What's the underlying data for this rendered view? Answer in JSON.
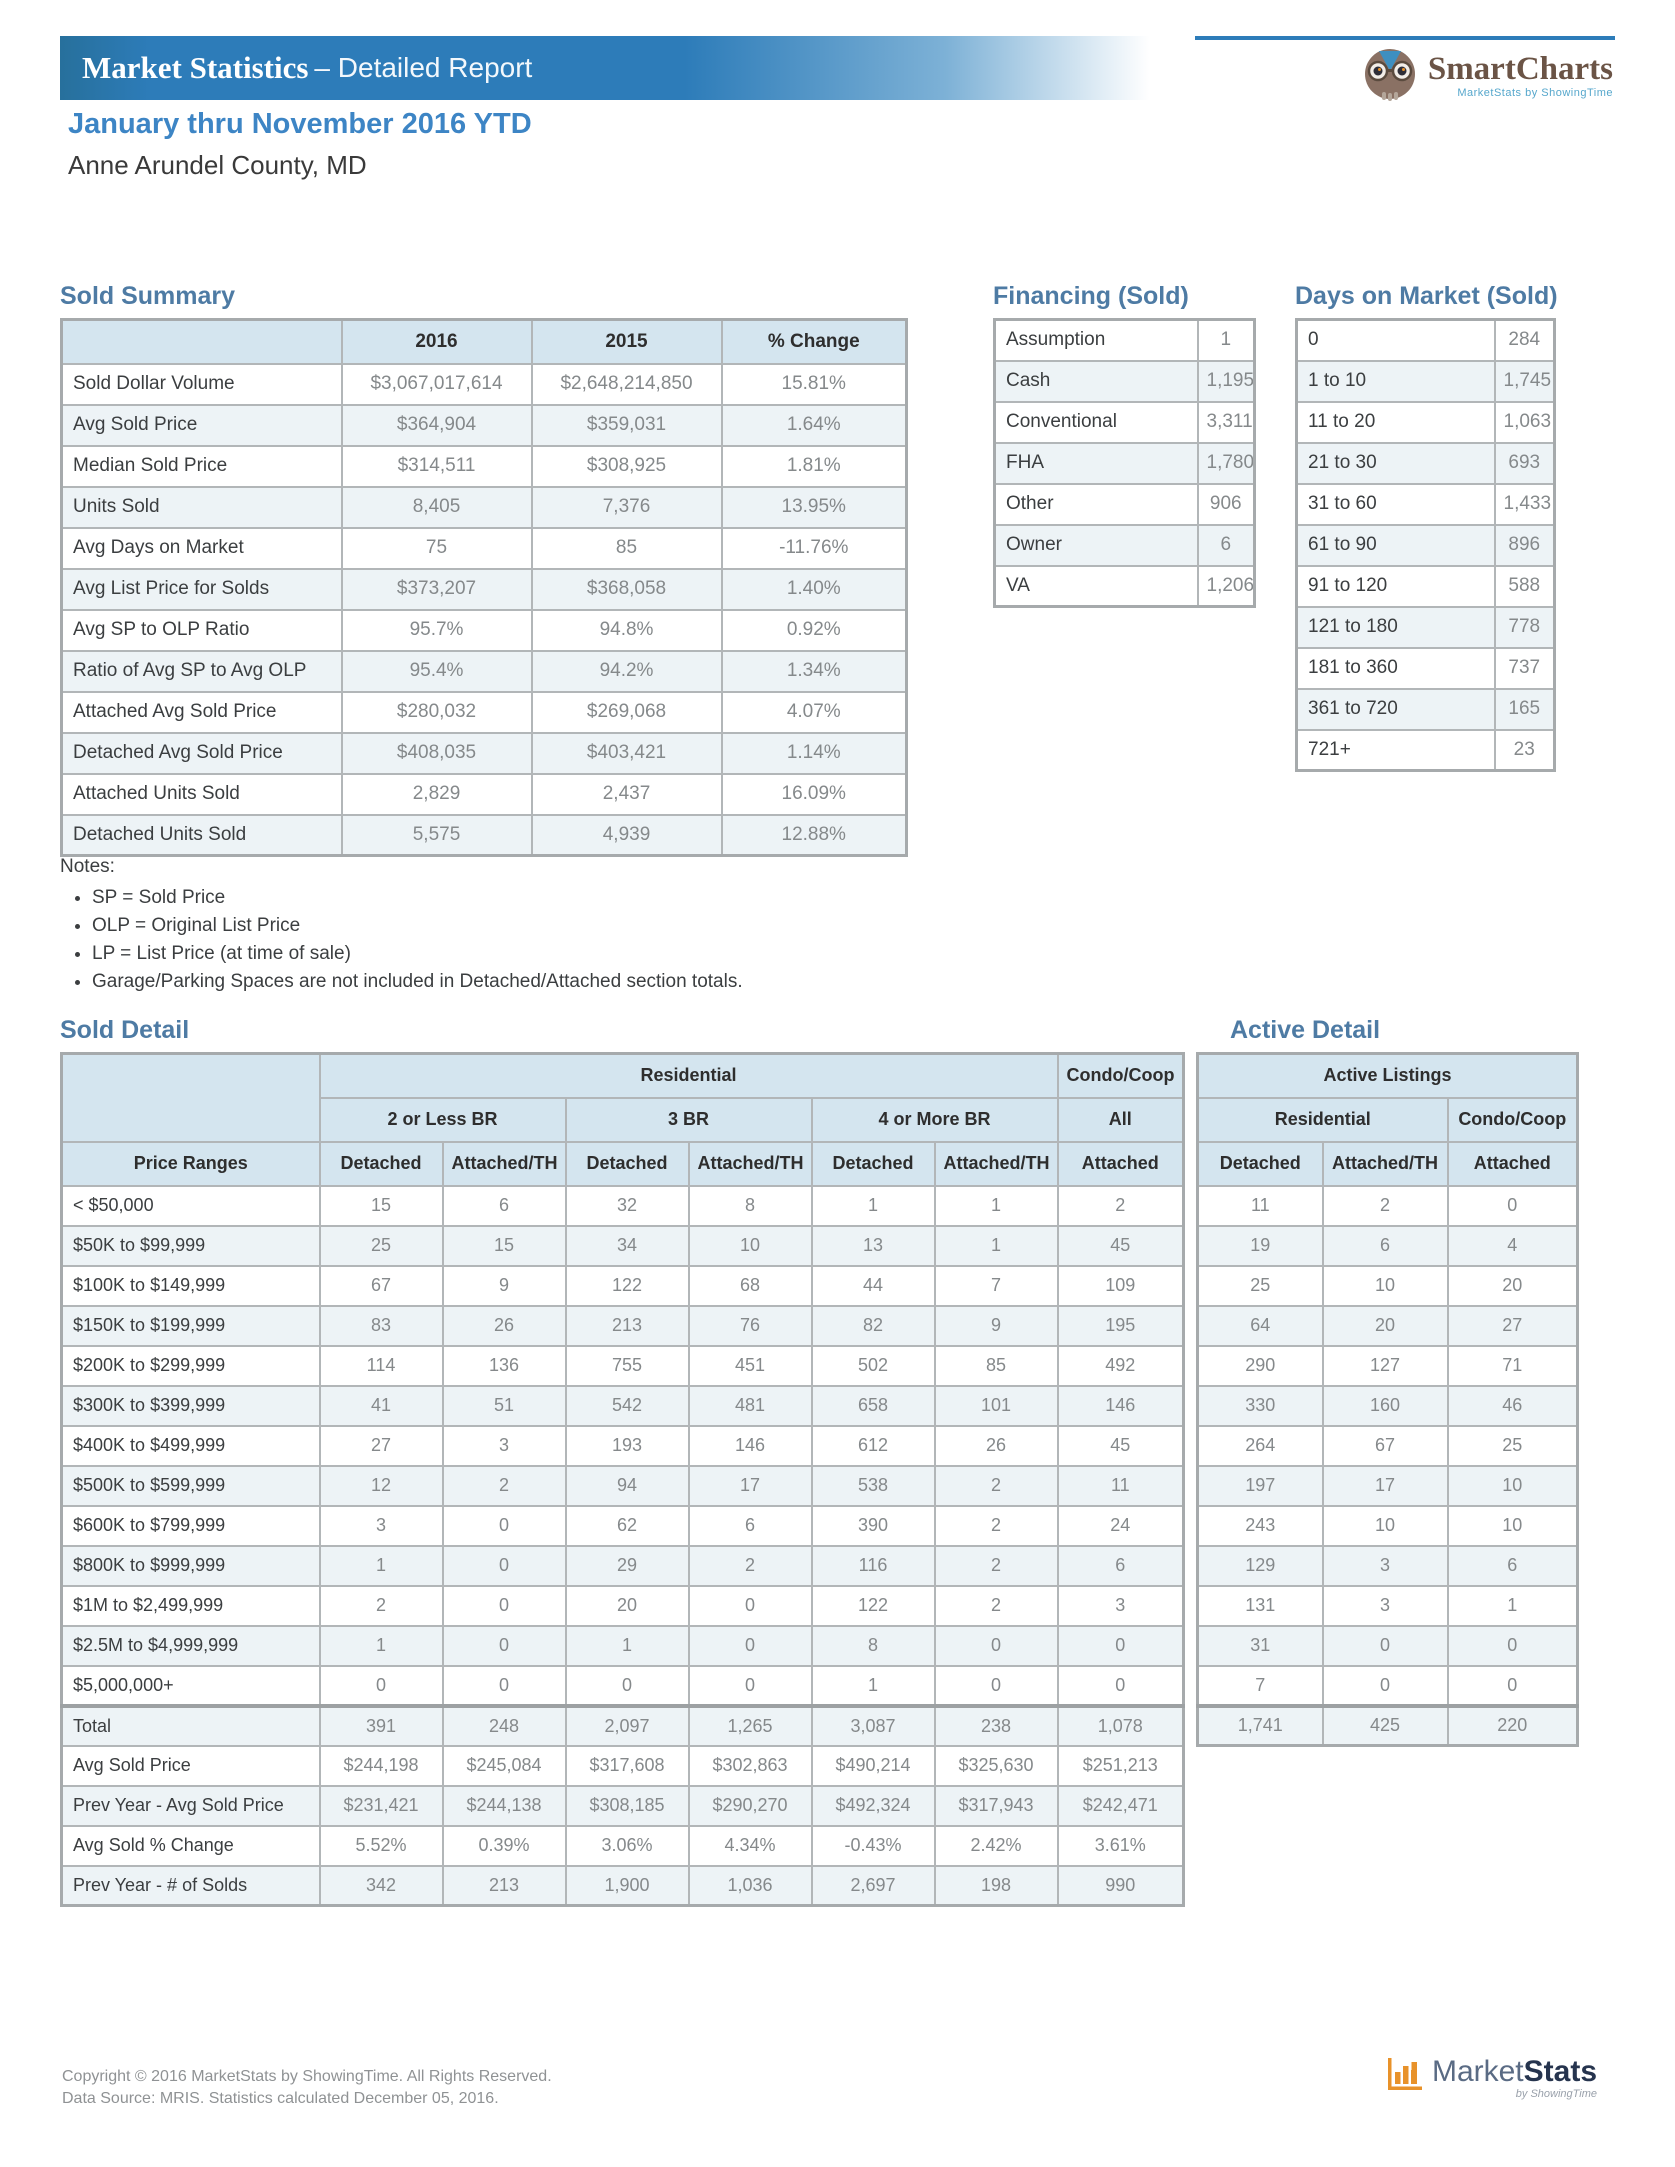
{
  "header": {
    "banner_title_bold": "Market Statistics",
    "banner_title_rest": "– Detailed Report",
    "smartcharts_logo": {
      "name": "SmartCharts",
      "tagline": "MarketStats by ShowingTime",
      "icon": "owl-icon"
    },
    "report_period": "January thru November 2016 YTD",
    "report_area": "Anne Arundel County, MD"
  },
  "colors": {
    "banner_blue": "#2d7cb9",
    "heading_blue": "#3d85c5",
    "section_title_blue": "#4e7ba4",
    "table_header_bg": "#d4e5ef",
    "alt_row_bg": "#edf3f6",
    "grid_border": "#b2b6b8",
    "value_gray": "#85898b",
    "smartcharts_brown": "#6b5446",
    "marketstats_orange": "#e8922a",
    "marketstats_navy": "#26344e"
  },
  "sold_summary": {
    "title": "Sold Summary",
    "columns": [
      "",
      "2016",
      "2015",
      "% Change"
    ],
    "rows": [
      {
        "label": "Sold Dollar Volume",
        "values": [
          "$3,067,017,614",
          "$2,648,214,850",
          "15.81%"
        ]
      },
      {
        "label": "Avg Sold Price",
        "values": [
          "$364,904",
          "$359,031",
          "1.64%"
        ]
      },
      {
        "label": "Median Sold Price",
        "values": [
          "$314,511",
          "$308,925",
          "1.81%"
        ]
      },
      {
        "label": "Units Sold",
        "values": [
          "8,405",
          "7,376",
          "13.95%"
        ]
      },
      {
        "label": "Avg Days on Market",
        "values": [
          "75",
          "85",
          "-11.76%"
        ]
      },
      {
        "label": "Avg List Price for Solds",
        "values": [
          "$373,207",
          "$368,058",
          "1.40%"
        ]
      },
      {
        "label": "Avg SP to OLP Ratio",
        "values": [
          "95.7%",
          "94.8%",
          "0.92%"
        ]
      },
      {
        "label": "Ratio of Avg SP to Avg OLP",
        "values": [
          "95.4%",
          "94.2%",
          "1.34%"
        ]
      },
      {
        "label": "Attached Avg Sold Price",
        "values": [
          "$280,032",
          "$269,068",
          "4.07%"
        ]
      },
      {
        "label": "Detached Avg Sold Price",
        "values": [
          "$408,035",
          "$403,421",
          "1.14%"
        ]
      },
      {
        "label": "Attached Units Sold",
        "values": [
          "2,829",
          "2,437",
          "16.09%"
        ]
      },
      {
        "label": "Detached Units Sold",
        "values": [
          "5,575",
          "4,939",
          "12.88%"
        ]
      }
    ]
  },
  "financing": {
    "title": "Financing (Sold)",
    "rows": [
      {
        "label": "Assumption",
        "values": [
          "1"
        ]
      },
      {
        "label": "Cash",
        "values": [
          "1,195"
        ]
      },
      {
        "label": "Conventional",
        "values": [
          "3,311"
        ]
      },
      {
        "label": "FHA",
        "values": [
          "1,780"
        ]
      },
      {
        "label": "Other",
        "values": [
          "906"
        ]
      },
      {
        "label": "Owner",
        "values": [
          "6"
        ]
      },
      {
        "label": "VA",
        "values": [
          "1,206"
        ]
      }
    ]
  },
  "days_on_market": {
    "title": "Days on Market (Sold)",
    "rows": [
      {
        "label": "0",
        "values": [
          "284"
        ]
      },
      {
        "label": "1 to 10",
        "values": [
          "1,745"
        ]
      },
      {
        "label": "11 to 20",
        "values": [
          "1,063"
        ]
      },
      {
        "label": "21 to 30",
        "values": [
          "693"
        ]
      },
      {
        "label": "31 to 60",
        "values": [
          "1,433"
        ]
      },
      {
        "label": "61 to 90",
        "values": [
          "896"
        ]
      },
      {
        "label": "91 to 120",
        "values": [
          "588"
        ]
      },
      {
        "label": "121 to 180",
        "values": [
          "778"
        ]
      },
      {
        "label": "181 to 360",
        "values": [
          "737"
        ]
      },
      {
        "label": "361 to 720",
        "values": [
          "165"
        ]
      },
      {
        "label": "721+",
        "values": [
          "23"
        ]
      }
    ]
  },
  "notes": {
    "title": "Notes:",
    "items": [
      "SP = Sold Price",
      "OLP = Original List Price",
      "LP = List Price (at time of sale)",
      "Garage/Parking Spaces are not included in Detached/Attached section totals."
    ]
  },
  "sold_detail": {
    "title": "Sold Detail",
    "header": {
      "group1": [
        "Residential",
        "Condo/Coop"
      ],
      "group2": [
        "2 or Less BR",
        "3 BR",
        "4 or More BR",
        "All"
      ],
      "cols": [
        "Price Ranges",
        "Detached",
        "Attached/TH",
        "Detached",
        "Attached/TH",
        "Detached",
        "Attached/TH",
        "Attached"
      ]
    },
    "rows": [
      {
        "label": "< $50,000",
        "values": [
          "15",
          "6",
          "32",
          "8",
          "1",
          "1",
          "2"
        ]
      },
      {
        "label": "$50K to $99,999",
        "values": [
          "25",
          "15",
          "34",
          "10",
          "13",
          "1",
          "45"
        ]
      },
      {
        "label": "$100K to $149,999",
        "values": [
          "67",
          "9",
          "122",
          "68",
          "44",
          "7",
          "109"
        ]
      },
      {
        "label": "$150K to $199,999",
        "values": [
          "83",
          "26",
          "213",
          "76",
          "82",
          "9",
          "195"
        ]
      },
      {
        "label": "$200K to $299,999",
        "values": [
          "114",
          "136",
          "755",
          "451",
          "502",
          "85",
          "492"
        ]
      },
      {
        "label": "$300K to $399,999",
        "values": [
          "41",
          "51",
          "542",
          "481",
          "658",
          "101",
          "146"
        ]
      },
      {
        "label": "$400K to $499,999",
        "values": [
          "27",
          "3",
          "193",
          "146",
          "612",
          "26",
          "45"
        ]
      },
      {
        "label": "$500K to $599,999",
        "values": [
          "12",
          "2",
          "94",
          "17",
          "538",
          "2",
          "11"
        ]
      },
      {
        "label": "$600K to $799,999",
        "values": [
          "3",
          "0",
          "62",
          "6",
          "390",
          "2",
          "24"
        ]
      },
      {
        "label": "$800K to $999,999",
        "values": [
          "1",
          "0",
          "29",
          "2",
          "116",
          "2",
          "6"
        ]
      },
      {
        "label": "$1M to $2,499,999",
        "values": [
          "2",
          "0",
          "20",
          "0",
          "122",
          "2",
          "3"
        ]
      },
      {
        "label": "$2.5M to $4,999,999",
        "values": [
          "1",
          "0",
          "1",
          "0",
          "8",
          "0",
          "0"
        ]
      },
      {
        "label": "$5,000,000+",
        "values": [
          "0",
          "0",
          "0",
          "0",
          "1",
          "0",
          "0"
        ]
      },
      {
        "label": "Total",
        "cls": "total",
        "values": [
          "391",
          "248",
          "2,097",
          "1,265",
          "3,087",
          "238",
          "1,078"
        ]
      },
      {
        "label": "Avg Sold Price",
        "values": [
          "$244,198",
          "$245,084",
          "$317,608",
          "$302,863",
          "$490,214",
          "$325,630",
          "$251,213"
        ]
      },
      {
        "label": "Prev Year - Avg Sold Price",
        "values": [
          "$231,421",
          "$244,138",
          "$308,185",
          "$290,270",
          "$492,324",
          "$317,943",
          "$242,471"
        ]
      },
      {
        "label": "Avg Sold % Change",
        "values": [
          "5.52%",
          "0.39%",
          "3.06%",
          "4.34%",
          "-0.43%",
          "2.42%",
          "3.61%"
        ]
      },
      {
        "label": "Prev Year - # of Solds",
        "values": [
          "342",
          "213",
          "1,900",
          "1,036",
          "2,697",
          "198",
          "990"
        ]
      }
    ]
  },
  "active_detail": {
    "title": "Active Detail",
    "header": {
      "group1": "Active Listings",
      "group2": [
        "Residential",
        "Condo/Coop"
      ],
      "cols": [
        "Detached",
        "Attached/TH",
        "Attached"
      ]
    },
    "rows": [
      {
        "values": [
          "11",
          "2",
          "0"
        ]
      },
      {
        "values": [
          "19",
          "6",
          "4"
        ]
      },
      {
        "values": [
          "25",
          "10",
          "20"
        ]
      },
      {
        "values": [
          "64",
          "20",
          "27"
        ]
      },
      {
        "values": [
          "290",
          "127",
          "71"
        ]
      },
      {
        "values": [
          "330",
          "160",
          "46"
        ]
      },
      {
        "values": [
          "264",
          "67",
          "25"
        ]
      },
      {
        "values": [
          "197",
          "17",
          "10"
        ]
      },
      {
        "values": [
          "243",
          "10",
          "10"
        ]
      },
      {
        "values": [
          "129",
          "3",
          "6"
        ]
      },
      {
        "values": [
          "131",
          "3",
          "1"
        ]
      },
      {
        "values": [
          "31",
          "0",
          "0"
        ]
      },
      {
        "values": [
          "7",
          "0",
          "0"
        ]
      },
      {
        "cls": "total",
        "values": [
          "1,741",
          "425",
          "220"
        ]
      }
    ]
  },
  "footer": {
    "line1": "Copyright © 2016 MarketStats by ShowingTime. All Rights Reserved.",
    "line2": "Data Source: MRIS. Statistics calculated December 05, 2016.",
    "marketstats_logo": {
      "market": "Market",
      "stats": "Stats",
      "tagline": "by ShowingTime",
      "icon": "bar-chart-icon"
    }
  }
}
